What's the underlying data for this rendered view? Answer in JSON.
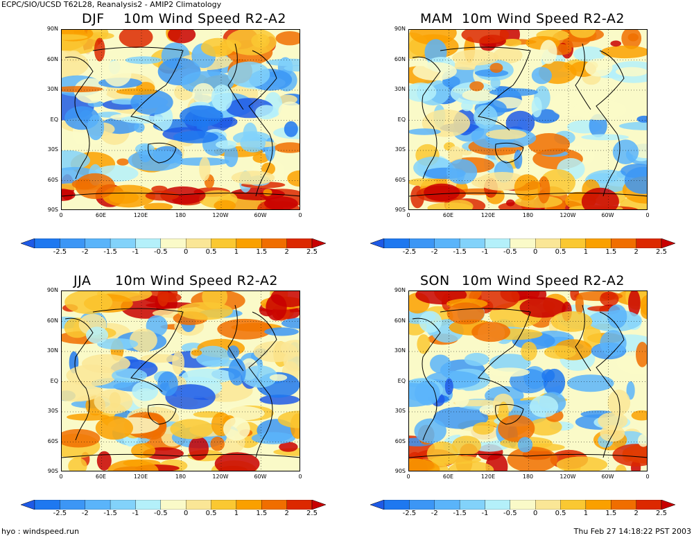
{
  "header": {
    "text": "ECPC/SIO/UCSD T62L28, Reanalysis2 - AMIP2 Climatology"
  },
  "panels": [
    {
      "season": "DJF",
      "title": "10m Wind Speed  R2-A2"
    },
    {
      "season": "MAM",
      "title": "10m Wind Speed  R2-A2"
    },
    {
      "season": "JJA",
      "title": "10m Wind Speed  R2-A2"
    },
    {
      "season": "SON",
      "title": "10m Wind Speed  R2-A2"
    }
  ],
  "lat_labels": [
    "90N",
    "60N",
    "30N",
    "EQ",
    "30S",
    "60S",
    "90S"
  ],
  "lon_labels": [
    "0",
    "60E",
    "120E",
    "180",
    "120W",
    "60W",
    "0"
  ],
  "colorbar": {
    "labels": [
      "-2.5",
      "-2",
      "-1.5",
      "-1",
      "-0.5",
      "0",
      "0.5",
      "1",
      "1.5",
      "2",
      "2.5"
    ],
    "colors": [
      "#1e5ae6",
      "#1e78f0",
      "#3c96f5",
      "#5ab4fa",
      "#82d2fa",
      "#b4f0fa",
      "#fafac8",
      "#fae696",
      "#fac832",
      "#faa000",
      "#f06e00",
      "#dc2800",
      "#c80000"
    ]
  },
  "footer": {
    "left": "hyo : windspeed.run",
    "right": "Thu Feb 27 14:18:22 PST 2003"
  }
}
